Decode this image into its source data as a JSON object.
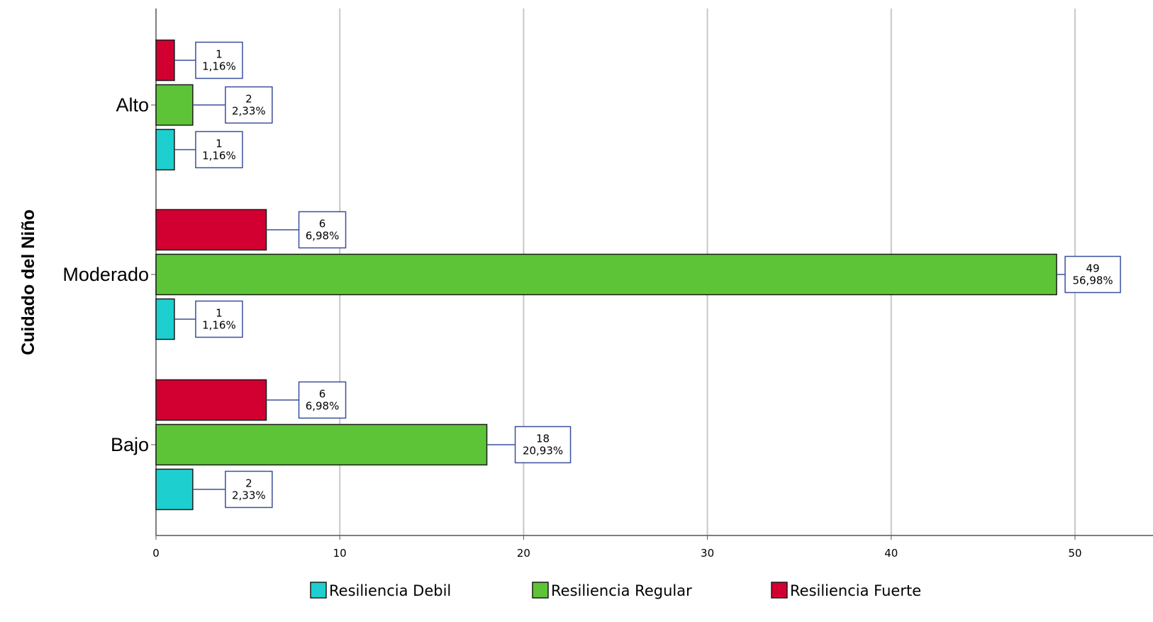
{
  "chart_data": {
    "type": "bar",
    "orientation": "horizontal",
    "ylabel": "Cuidado del Niño",
    "xlabel": "",
    "categories": [
      "Alto",
      "Moderado",
      "Bajo"
    ],
    "xlim": [
      0,
      53
    ],
    "x_ticks": [
      "0",
      "10",
      "20",
      "30",
      "40",
      "50"
    ],
    "grid": "vertical",
    "legend_position": "bottom",
    "series": [
      {
        "name": "Resiliencia Fuerte",
        "color": "#d20031",
        "values": [
          1,
          6,
          6
        ],
        "labels": [
          "1",
          "6",
          "6"
        ],
        "percents": [
          "1,16%",
          "6,98%",
          "6,98%"
        ]
      },
      {
        "name": "Resiliencia Regular",
        "color": "#5ec437",
        "values": [
          2,
          49,
          18
        ],
        "labels": [
          "2",
          "49",
          "18"
        ],
        "percents": [
          "2,33%",
          "56,98%",
          "20,93%"
        ]
      },
      {
        "name": "Resiliencia Debil",
        "color": "#1ecfcf",
        "values": [
          1,
          1,
          2
        ],
        "labels": [
          "1",
          "1",
          "2"
        ],
        "percents": [
          "1,16%",
          "1,16%",
          "2,33%"
        ]
      }
    ],
    "legend": [
      {
        "name": "Resiliencia Debil",
        "color": "#1ecfcf"
      },
      {
        "name": "Resiliencia Regular",
        "color": "#5ec437"
      },
      {
        "name": "Resiliencia Fuerte",
        "color": "#d20031"
      }
    ]
  }
}
